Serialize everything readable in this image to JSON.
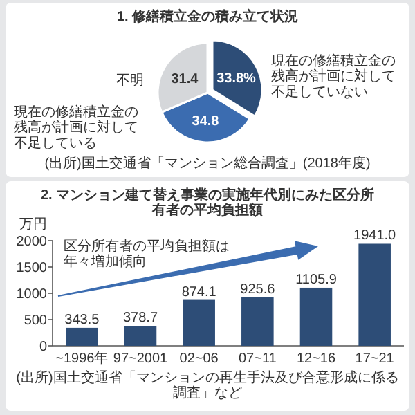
{
  "chart_data": [
    {
      "type": "pie",
      "title": "1. 修繕積立金の積み立て状況",
      "categories": [
        "現在の修繕積立金の残高が計画に対して不足していない",
        "現在の修繕積立金の残高が計画に対して不足している",
        "不明"
      ],
      "values": [
        33.8,
        34.8,
        31.4
      ],
      "value_labels": [
        "33.8%",
        "34.8",
        "31.4"
      ],
      "colors": [
        "#2d4d77",
        "#3b6cb0",
        "#d5d7da"
      ],
      "annotations": [
        "(出所)国土交通省「マンション総合調査」(2018年度)"
      ]
    },
    {
      "type": "bar",
      "title": "2. マンション建て替え事業の実施年代別にみた区分所有者の平均負担額",
      "ylabel": "万円",
      "categories": [
        "~1996年",
        "97~2001",
        "02~06",
        "07~11",
        "12~16",
        "17~21"
      ],
      "values": [
        343.5,
        378.7,
        874.1,
        925.6,
        1105.9,
        1941.0
      ],
      "value_labels": [
        "343.5",
        "378.7",
        "874.1",
        "925.6",
        "1105.9",
        "1941.0"
      ],
      "color": "#2d4d77",
      "ylim": [
        0,
        2000
      ],
      "yticks": [
        0,
        500,
        1000,
        1500,
        2000
      ],
      "annotations": [
        "区分所有者の平均負担額は年々増加傾向",
        "(出所)国土交通省「マンションの再生手法及び合意形成に係る調査」など"
      ]
    }
  ]
}
